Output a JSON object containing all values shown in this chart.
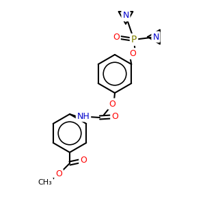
{
  "bg_color": "#ffffff",
  "atom_colors": {
    "C": "#000000",
    "N": "#0000cc",
    "O": "#ff0000",
    "P": "#808000",
    "H": "#000000"
  },
  "figsize": [
    3.0,
    3.0
  ],
  "dpi": 100
}
